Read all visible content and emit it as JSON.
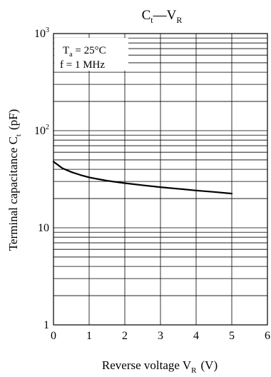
{
  "chart_data": {
    "type": "line",
    "title": {
      "main": "C",
      "main_sub": "t",
      "dash": "—",
      "var": "V",
      "var_sub": "R"
    },
    "xlabel": {
      "text": "Reverse voltage  V",
      "sub": "R",
      "unit": "(V)"
    },
    "ylabel": {
      "text": "Terminal capacitance  C",
      "sub": "t",
      "unit": "(pF)"
    },
    "annotation": {
      "line1_var": "T",
      "line1_sub": "a",
      "line1_val": " = 25°C",
      "line2": "f = 1 MHz"
    },
    "xlim": [
      0,
      6
    ],
    "ylim": [
      1,
      1000
    ],
    "yscale": "log",
    "grid": true,
    "x_ticks": [
      "0",
      "1",
      "2",
      "3",
      "4",
      "5",
      "6"
    ],
    "y_ticks": [
      {
        "value": 1,
        "base": "1",
        "exp": ""
      },
      {
        "value": 10,
        "base": "10",
        "exp": ""
      },
      {
        "value": 100,
        "base": "10",
        "exp": "2"
      },
      {
        "value": 1000,
        "base": "10",
        "exp": "3"
      }
    ],
    "series": [
      {
        "x": [
          0,
          0.1,
          0.25,
          0.5,
          0.75,
          1,
          1.5,
          2,
          2.5,
          3,
          3.5,
          4,
          4.5,
          5
        ],
        "y": [
          48,
          45,
          41,
          37.5,
          35,
          33,
          30.5,
          28.8,
          27.4,
          26.2,
          25.2,
          24.2,
          23.4,
          22.5
        ]
      }
    ]
  }
}
